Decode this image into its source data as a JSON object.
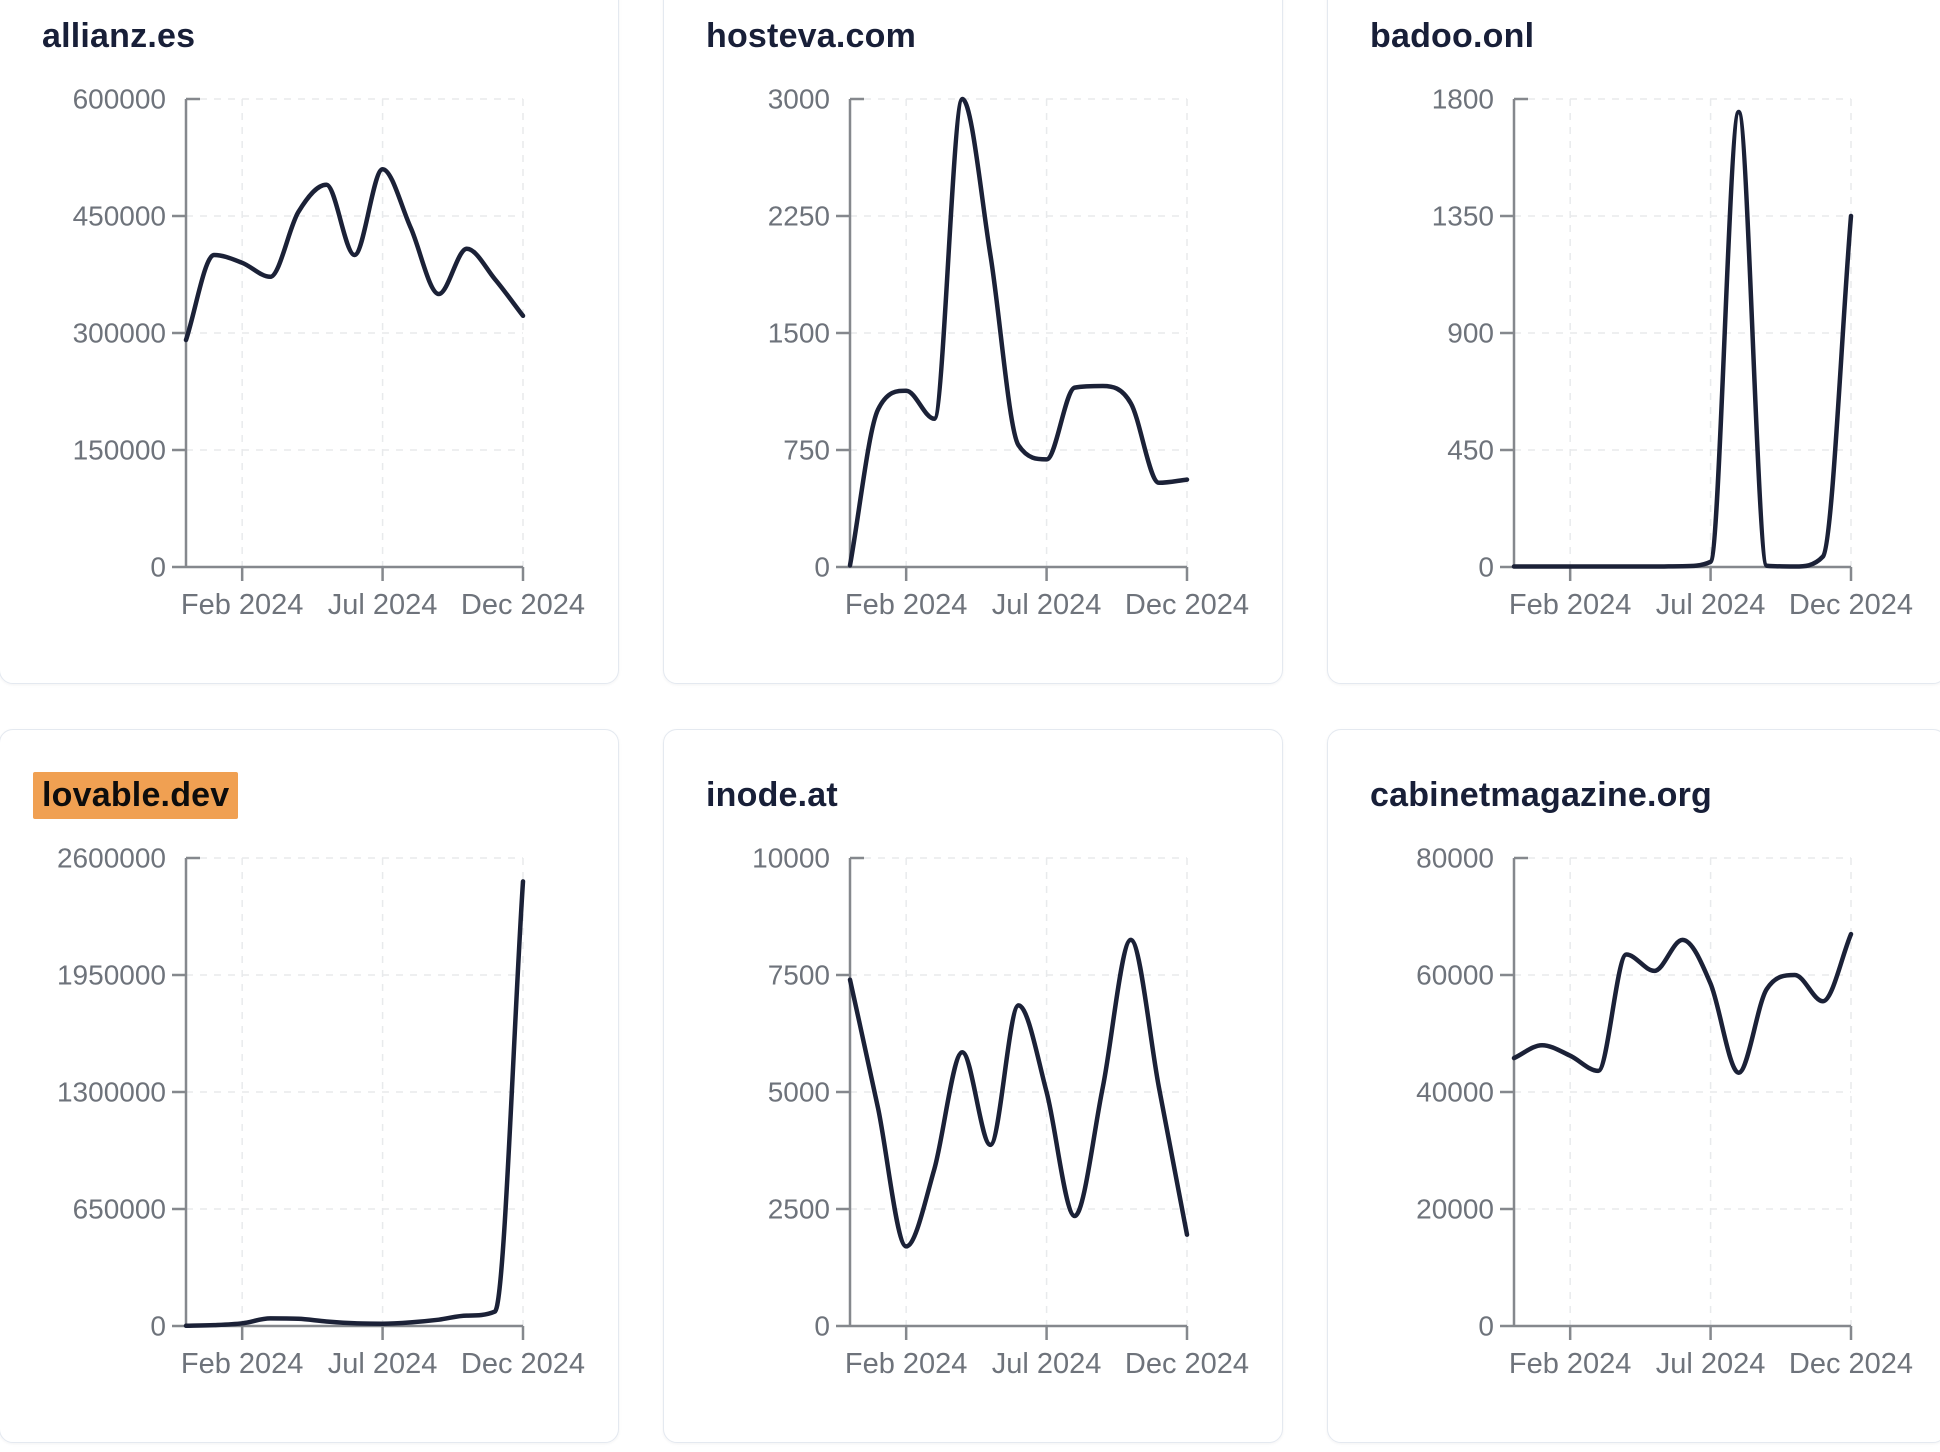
{
  "styles": {
    "background": "#ffffff",
    "series_color": "#1b2137",
    "axis_color": "#85888d",
    "tick_label_color": "#6e737b",
    "title_color": "#181f38",
    "grid_color": "#e8eaec",
    "card_border_color": "#e4e9f0",
    "highlight_color": "#f0a052",
    "highlight_text_color": "#0d0d0d"
  },
  "x_axis": {
    "months": [
      "Dec 2023",
      "Jan 2024",
      "Feb 2024",
      "Mar 2024",
      "Apr 2024",
      "May 2024",
      "Jun 2024",
      "Jul 2024",
      "Aug 2024",
      "Sep 2024",
      "Oct 2024",
      "Nov 2024",
      "Dec 2024"
    ],
    "tick_labels": [
      "Feb 2024",
      "Jul 2024",
      "Dec 2024"
    ],
    "tick_positions": [
      2,
      7,
      12
    ]
  },
  "chart_data": [
    {
      "type": "line",
      "title": "allianz.es",
      "title_highlighted": false,
      "ylim": [
        0,
        600000
      ],
      "y_ticks": [
        0,
        150000,
        300000,
        450000,
        600000
      ],
      "x": [
        "Dec 2023",
        "Jan 2024",
        "Feb 2024",
        "Mar 2024",
        "Apr 2024",
        "May 2024",
        "Jun 2024",
        "Jul 2024",
        "Aug 2024",
        "Sep 2024",
        "Oct 2024",
        "Nov 2024",
        "Dec 2024"
      ],
      "values": [
        291000,
        400000,
        390000,
        372000,
        455000,
        490000,
        400000,
        510000,
        435000,
        350000,
        408000,
        369000,
        322000
      ]
    },
    {
      "type": "line",
      "title": "hosteva.com",
      "title_highlighted": false,
      "ylim": [
        0,
        3000
      ],
      "y_ticks": [
        0,
        750,
        1500,
        2250,
        3000
      ],
      "x": [
        "Dec 2023",
        "Jan 2024",
        "Feb 2024",
        "Mar 2024",
        "Apr 2024",
        "May 2024",
        "Jun 2024",
        "Jul 2024",
        "Aug 2024",
        "Sep 2024",
        "Oct 2024",
        "Nov 2024",
        "Dec 2024"
      ],
      "values": [
        10,
        1010,
        1130,
        950,
        3000,
        2000,
        780,
        690,
        1150,
        1160,
        1050,
        540,
        560
      ]
    },
    {
      "type": "line",
      "title": "badoo.onl",
      "title_highlighted": false,
      "ylim": [
        0,
        1800
      ],
      "y_ticks": [
        0,
        450,
        900,
        1350,
        1800
      ],
      "x": [
        "Dec 2023",
        "Jan 2024",
        "Feb 2024",
        "Mar 2024",
        "Apr 2024",
        "May 2024",
        "Jun 2024",
        "Jul 2024",
        "Aug 2024",
        "Sep 2024",
        "Oct 2024",
        "Nov 2024",
        "Dec 2024"
      ],
      "values": [
        2,
        2,
        2,
        2,
        2,
        2,
        3,
        20,
        1750,
        5,
        2,
        40,
        1350
      ]
    },
    {
      "type": "line",
      "title": "lovable.dev",
      "title_highlighted": true,
      "ylim": [
        0,
        2600000
      ],
      "y_ticks": [
        0,
        650000,
        1300000,
        1950000,
        2600000
      ],
      "x": [
        "Dec 2023",
        "Jan 2024",
        "Feb 2024",
        "Mar 2024",
        "Apr 2024",
        "May 2024",
        "Jun 2024",
        "Jul 2024",
        "Aug 2024",
        "Sep 2024",
        "Oct 2024",
        "Nov 2024",
        "Dec 2024"
      ],
      "values": [
        1000,
        5000,
        15000,
        42000,
        40000,
        25000,
        15000,
        13000,
        20000,
        35000,
        58000,
        80000,
        2470000
      ]
    },
    {
      "type": "line",
      "title": "inode.at",
      "title_highlighted": false,
      "ylim": [
        0,
        10000
      ],
      "y_ticks": [
        0,
        2500,
        5000,
        7500,
        10000
      ],
      "x": [
        "Dec 2023",
        "Jan 2024",
        "Feb 2024",
        "Mar 2024",
        "Apr 2024",
        "May 2024",
        "Jun 2024",
        "Jul 2024",
        "Aug 2024",
        "Sep 2024",
        "Oct 2024",
        "Nov 2024",
        "Dec 2024"
      ],
      "values": [
        7400,
        4650,
        1700,
        3350,
        5850,
        3870,
        6850,
        5000,
        2350,
        5100,
        8250,
        5100,
        1950
      ]
    },
    {
      "type": "line",
      "title": "cabinetmagazine.org",
      "title_highlighted": false,
      "ylim": [
        0,
        80000
      ],
      "y_ticks": [
        0,
        20000,
        40000,
        60000,
        80000
      ],
      "x": [
        "Dec 2023",
        "Jan 2024",
        "Feb 2024",
        "Mar 2024",
        "Apr 2024",
        "May 2024",
        "Jun 2024",
        "Jul 2024",
        "Aug 2024",
        "Sep 2024",
        "Oct 2024",
        "Nov 2024",
        "Dec 2024"
      ],
      "values": [
        45800,
        48000,
        46200,
        43600,
        63500,
        60700,
        66000,
        58500,
        43300,
        57600,
        60000,
        55500,
        67000
      ]
    }
  ]
}
